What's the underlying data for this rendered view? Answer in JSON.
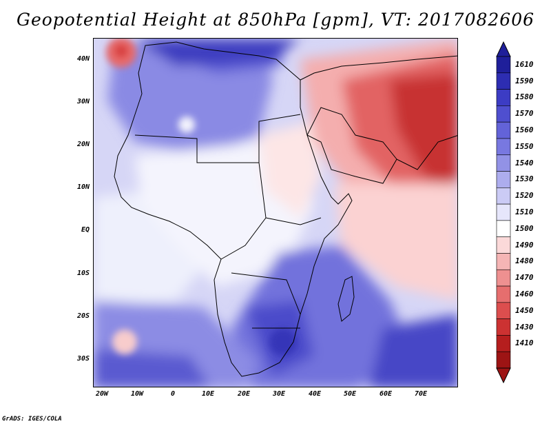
{
  "title": "Geopotential Height at 850hPa [gpm], VT: 2017082606",
  "credit": "GrADS: IGES/COLA",
  "lat_labels": [
    "40N",
    "30N",
    "20N",
    "10N",
    "EQ",
    "10S",
    "20S",
    "30S"
  ],
  "lon_labels": [
    "20W",
    "10W",
    "0",
    "10E",
    "20E",
    "30E",
    "40E",
    "50E",
    "60E",
    "70E"
  ],
  "colorbar": {
    "levels": [
      "1610",
      "1590",
      "1580",
      "1570",
      "1560",
      "1550",
      "1540",
      "1530",
      "1520",
      "1510",
      "1500",
      "1490",
      "1480",
      "1470",
      "1460",
      "1450",
      "1430",
      "1410"
    ],
    "colors": [
      "#1f1f9a",
      "#2d2db2",
      "#3c3cc4",
      "#4f4fcf",
      "#6363d8",
      "#7878e0",
      "#9292e6",
      "#adadee",
      "#cbcbf5",
      "#e6e6fb",
      "#ffffff",
      "#fbd9d9",
      "#f5b5b5",
      "#ee9090",
      "#e66e6e",
      "#dc4e4e",
      "#cc3232",
      "#b51e1e",
      "#9d1414"
    ]
  },
  "map": {
    "region": "Africa and surroundings",
    "lon_range": [
      -22,
      80
    ],
    "lat_range": [
      -37,
      45
    ]
  }
}
